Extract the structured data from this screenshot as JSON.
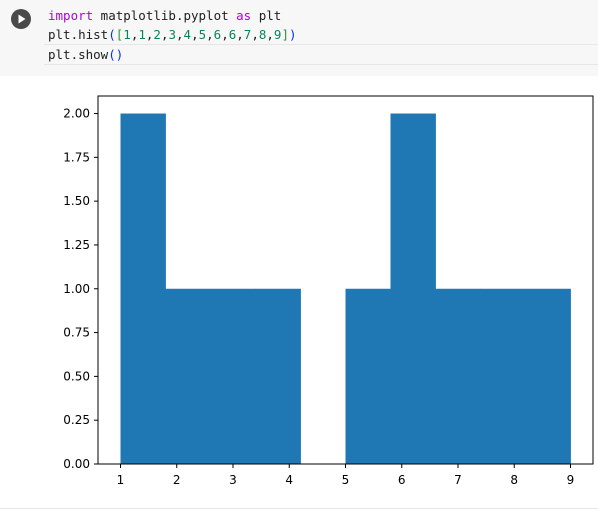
{
  "cell": {
    "code_lines": [
      [
        {
          "t": "import",
          "c": "kw"
        },
        {
          "t": " matplotlib.pyplot ",
          "c": ""
        },
        {
          "t": "as",
          "c": "kw"
        },
        {
          "t": " plt",
          "c": ""
        }
      ],
      [
        {
          "t": "plt.hist",
          "c": ""
        },
        {
          "t": "(",
          "c": "br1"
        },
        {
          "t": "[",
          "c": "br2"
        },
        {
          "t": "1",
          "c": "num"
        },
        {
          "t": ",",
          "c": ""
        },
        {
          "t": "1",
          "c": "num"
        },
        {
          "t": ",",
          "c": ""
        },
        {
          "t": "2",
          "c": "num"
        },
        {
          "t": ",",
          "c": ""
        },
        {
          "t": "3",
          "c": "num"
        },
        {
          "t": ",",
          "c": ""
        },
        {
          "t": "4",
          "c": "num"
        },
        {
          "t": ",",
          "c": ""
        },
        {
          "t": "5",
          "c": "num"
        },
        {
          "t": ",",
          "c": ""
        },
        {
          "t": "6",
          "c": "num"
        },
        {
          "t": ",",
          "c": ""
        },
        {
          "t": "6",
          "c": "num"
        },
        {
          "t": ",",
          "c": ""
        },
        {
          "t": "7",
          "c": "num"
        },
        {
          "t": ",",
          "c": ""
        },
        {
          "t": "8",
          "c": "num"
        },
        {
          "t": ",",
          "c": ""
        },
        {
          "t": "9",
          "c": "num"
        },
        {
          "t": "]",
          "c": "br2"
        },
        {
          "t": ")",
          "c": "br1"
        }
      ],
      [
        {
          "t": "plt.show",
          "c": ""
        },
        {
          "t": "()",
          "c": "br1"
        }
      ]
    ]
  },
  "chart_data": {
    "type": "bar",
    "bin_edges": [
      1.0,
      1.8,
      2.6,
      3.4,
      4.2,
      5.0,
      5.8,
      6.6,
      7.4,
      8.2,
      9.0
    ],
    "values": [
      2,
      1,
      1,
      1,
      0,
      1,
      2,
      1,
      1,
      1
    ],
    "xlim": [
      0.6,
      9.4
    ],
    "ylim": [
      0,
      2.1
    ],
    "xticks": [
      "1",
      "2",
      "3",
      "4",
      "5",
      "6",
      "7",
      "8",
      "9"
    ],
    "yticks": [
      "0.00",
      "0.25",
      "0.50",
      "0.75",
      "1.00",
      "1.25",
      "1.50",
      "1.75",
      "2.00"
    ],
    "bar_color": "#1f77b4",
    "grid": false
  }
}
